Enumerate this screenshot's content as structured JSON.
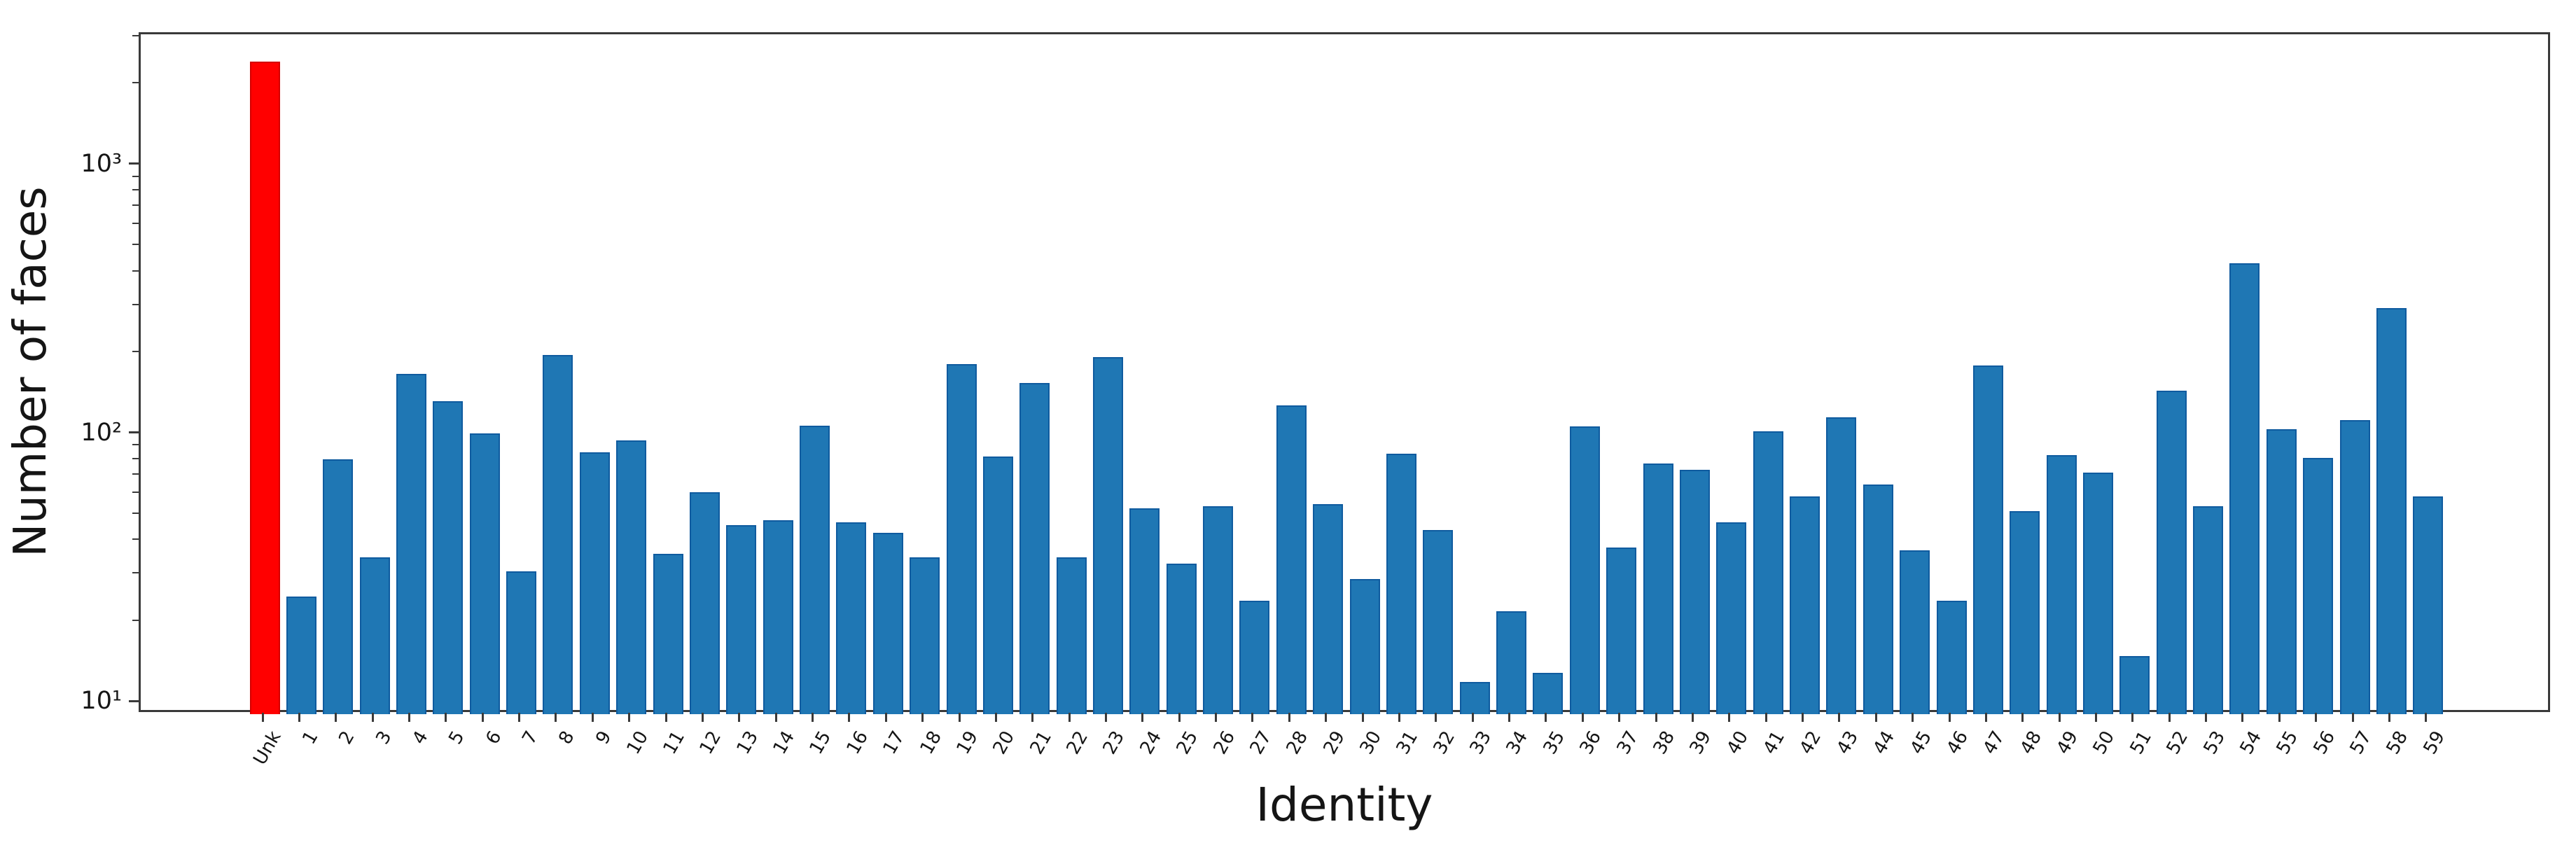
{
  "figure": {
    "background": "#ffffff",
    "ylabel": "Number of faces",
    "xlabel": "Identity",
    "spine_color": "#3a3a3a",
    "text_color": "#151515"
  },
  "chart_data": {
    "type": "bar",
    "title": "",
    "xlabel": "Identity",
    "ylabel": "Number of faces",
    "yscale": "log",
    "ylim": [
      9.1,
      3090
    ],
    "grid": false,
    "legend_position": "none",
    "y_tick_values": [
      10,
      100,
      1000
    ],
    "y_tick_labels": [
      "10¹",
      "10²",
      "10³"
    ],
    "categories": [
      "Unk",
      "1",
      "2",
      "3",
      "4",
      "5",
      "6",
      "7",
      "8",
      "9",
      "10",
      "11",
      "12",
      "13",
      "14",
      "15",
      "16",
      "17",
      "18",
      "19",
      "20",
      "21",
      "22",
      "23",
      "24",
      "25",
      "26",
      "27",
      "28",
      "29",
      "30",
      "31",
      "32",
      "33",
      "34",
      "35",
      "36",
      "37",
      "38",
      "39",
      "40",
      "41",
      "42",
      "43",
      "44",
      "45",
      "46",
      "47",
      "48",
      "49",
      "50",
      "51",
      "52",
      "53",
      "54",
      "55",
      "56",
      "57",
      "58",
      "59"
    ],
    "values": [
      2450,
      25,
      81,
      35,
      168,
      133,
      101,
      31,
      198,
      86,
      95,
      36,
      61,
      46,
      48,
      108,
      47,
      43,
      35,
      183,
      83,
      156,
      35,
      194,
      53,
      33,
      54,
      24,
      128,
      55,
      29,
      85,
      44,
      12,
      22,
      13,
      107,
      38,
      78,
      74,
      47,
      103,
      59,
      116,
      65,
      37,
      24,
      181,
      52,
      84,
      72,
      15,
      146,
      54,
      435,
      105,
      82,
      113,
      296,
      59
    ],
    "bar_color": "#1f77b4",
    "bar_edge_color": "#0f5b9f",
    "highlight": {
      "index": 0,
      "category": "Unk",
      "color": "#ff0000",
      "edge_color": "#d40000"
    }
  }
}
